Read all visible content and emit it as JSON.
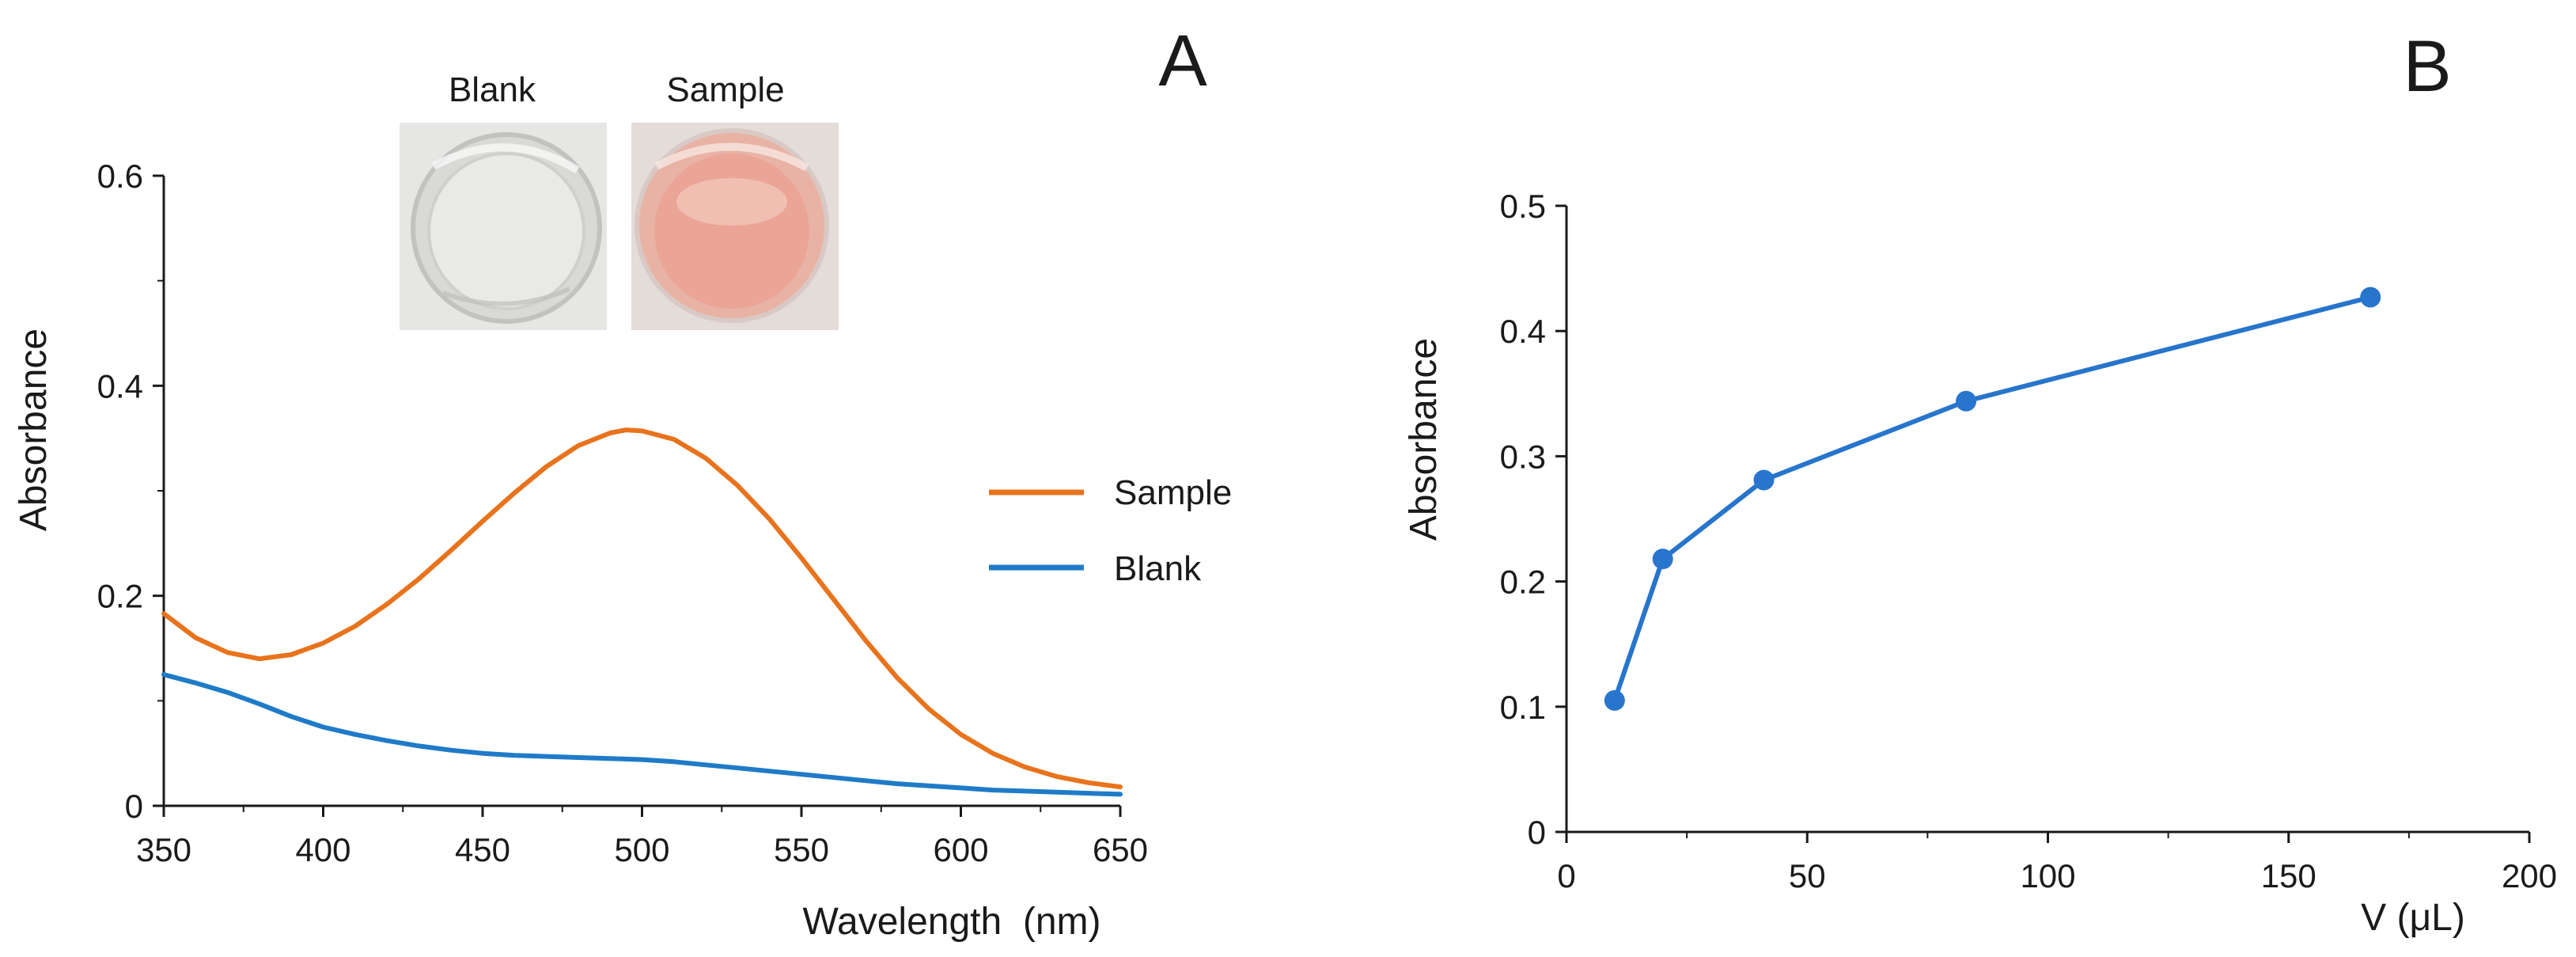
{
  "figure": {
    "panel_a_label": "A",
    "panel_b_label": "B",
    "inset_labels": [
      "Blank",
      "Sample"
    ]
  },
  "colors": {
    "sample": "#E8731C",
    "blank": "#1F7BC8",
    "axis": "#1a1a1a",
    "panel_b_series": "#2775CC"
  },
  "chart_data": [
    {
      "id": "A",
      "type": "line",
      "title": "",
      "xlabel": "Wavelength  (nm)",
      "ylabel": "Absorbance",
      "xlim": [
        350,
        650
      ],
      "ylim": [
        0,
        0.6
      ],
      "xticks": [
        350,
        400,
        450,
        500,
        550,
        600,
        650
      ],
      "yticks": [
        0,
        0.2,
        0.4,
        0.6
      ],
      "xtick_labels": [
        "350",
        "400",
        "450",
        "500",
        "550",
        "600",
        "650"
      ],
      "ytick_labels": [
        "0",
        "0.2",
        "0.4",
        "0.6"
      ],
      "legend": "right",
      "series": [
        {
          "name": "Sample",
          "color": "#E8731C",
          "x": [
            350,
            360,
            370,
            380,
            390,
            400,
            410,
            420,
            430,
            440,
            450,
            460,
            470,
            480,
            490,
            495,
            500,
            510,
            520,
            530,
            540,
            550,
            560,
            570,
            580,
            590,
            600,
            610,
            620,
            630,
            640,
            650
          ],
          "y": [
            0.183,
            0.16,
            0.146,
            0.14,
            0.144,
            0.155,
            0.171,
            0.192,
            0.216,
            0.243,
            0.271,
            0.298,
            0.323,
            0.343,
            0.355,
            0.358,
            0.357,
            0.349,
            0.331,
            0.305,
            0.273,
            0.236,
            0.197,
            0.158,
            0.122,
            0.092,
            0.068,
            0.05,
            0.037,
            0.028,
            0.022,
            0.018
          ]
        },
        {
          "name": "Blank",
          "color": "#1F7BC8",
          "x": [
            350,
            360,
            370,
            380,
            390,
            400,
            410,
            420,
            430,
            440,
            450,
            460,
            470,
            480,
            490,
            500,
            510,
            520,
            530,
            540,
            550,
            560,
            570,
            580,
            590,
            600,
            610,
            620,
            630,
            640,
            650
          ],
          "y": [
            0.125,
            0.117,
            0.108,
            0.097,
            0.085,
            0.075,
            0.068,
            0.062,
            0.057,
            0.053,
            0.05,
            0.048,
            0.047,
            0.046,
            0.045,
            0.044,
            0.042,
            0.039,
            0.036,
            0.033,
            0.03,
            0.027,
            0.024,
            0.021,
            0.019,
            0.017,
            0.015,
            0.014,
            0.013,
            0.012,
            0.011
          ]
        }
      ]
    },
    {
      "id": "B",
      "type": "line",
      "title": "",
      "xlabel": "V (μL)",
      "ylabel": "Absorbance",
      "xlim": [
        0,
        200
      ],
      "ylim": [
        0,
        0.5
      ],
      "xticks": [
        0,
        50,
        100,
        150,
        200
      ],
      "yticks": [
        0,
        0.1,
        0.2,
        0.3,
        0.4,
        0.5
      ],
      "xtick_labels": [
        "0",
        "50",
        "100",
        "150",
        "200"
      ],
      "ytick_labels": [
        "0",
        "0.1",
        "0.2",
        "0.3",
        "0.4",
        "0.5"
      ],
      "series": [
        {
          "name": "Absorbance",
          "color": "#2775CC",
          "x": [
            10,
            20,
            41,
            83,
            167
          ],
          "y": [
            0.105,
            0.218,
            0.281,
            0.344,
            0.427
          ],
          "markers": true
        }
      ]
    }
  ]
}
